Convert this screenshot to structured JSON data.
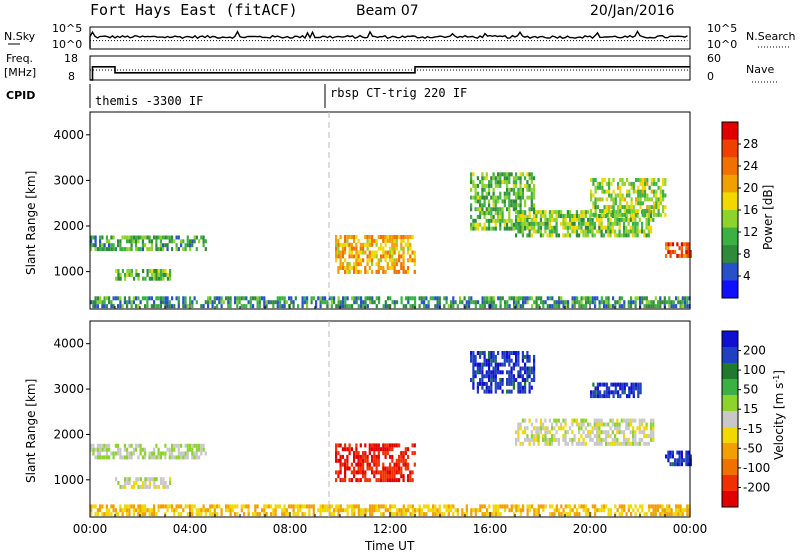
{
  "header": {
    "station": "Fort Hays East (fitACF)",
    "beam": "Beam 07",
    "date": "20/Jan/2016"
  },
  "noise_panel": {
    "left_label": "N.Sky",
    "right_label": "N.Search",
    "left_ticks": [
      "10^5",
      "10^0"
    ],
    "right_ticks": [
      "10^5",
      "10^0"
    ]
  },
  "freq_panel": {
    "left_label_1": "Freq.",
    "left_label_2": "[MHz]",
    "right_label": "Nave",
    "left_ticks": [
      "18",
      "8"
    ],
    "right_ticks": [
      "60",
      "0"
    ]
  },
  "cpid": {
    "label": "CPID",
    "segments": [
      "themis -3300 IF",
      "rbsp CT-trig 220 IF"
    ]
  },
  "axes": {
    "ylabel": "Slant Range [km]",
    "xlabel": "Time UT",
    "x_ticks": [
      "00:00",
      "04:00",
      "08:00",
      "12:00",
      "16:00",
      "20:00",
      "00:00"
    ],
    "y_ticks": [
      "1000",
      "2000",
      "3000",
      "4000"
    ]
  },
  "colors": {
    "power": [
      "#1010ff",
      "#2850c8",
      "#2f8a3a",
      "#3cb043",
      "#8ed22c",
      "#f0d800",
      "#f0a000",
      "#f07000",
      "#f04000",
      "#e00000"
    ],
    "velocity": [
      "#1010d0",
      "#2040c0",
      "#1f7a30",
      "#3cb043",
      "#8ed22c",
      "#c8c8c8",
      "#f0d800",
      "#f0a000",
      "#f07000",
      "#f03000",
      "#e00000"
    ]
  },
  "chart_data": [
    {
      "type": "line",
      "title": "N.Sky / N.Search",
      "x_range_hours": [
        0,
        24
      ],
      "series": [
        {
          "name": "N.Sky",
          "style": "solid"
        },
        {
          "name": "N.Search",
          "style": "dotted"
        }
      ]
    },
    {
      "type": "line",
      "title": "Freq. / Nave",
      "x_range_hours": [
        0,
        24
      ],
      "series": [
        {
          "name": "Freq. [MHz]",
          "style": "solid",
          "x": [
            0,
            0.1,
            0.1,
            1.0,
            1.0,
            13.0,
            13.0,
            24
          ],
          "y": [
            8,
            8,
            13.5,
            13.5,
            11,
            11,
            13.5,
            13.5
          ]
        },
        {
          "name": "Nave",
          "style": "dotted",
          "x": [
            0,
            1.0,
            1.0,
            24
          ],
          "y": [
            18,
            18,
            16,
            16
          ]
        }
      ]
    },
    {
      "type": "heatmap",
      "quantity": "Power [dB]",
      "x_range_hours": [
        0,
        24
      ],
      "ylim": [
        180,
        4500
      ],
      "colorbar": {
        "label": "Power [dB]",
        "ticks": [
          "28",
          "24",
          "20",
          "16",
          "12",
          "8",
          "4"
        ],
        "range": [
          0,
          32
        ]
      },
      "regions": [
        {
          "t0": 0.0,
          "t1": 4.6,
          "r0": 1450,
          "r1": 1750,
          "level": 0.3
        },
        {
          "t0": 1.0,
          "t1": 3.2,
          "r0": 800,
          "r1": 1000,
          "level": 0.35
        },
        {
          "t0": 9.8,
          "t1": 13.0,
          "r0": 950,
          "r1": 1800,
          "level": 0.65
        },
        {
          "t0": 15.2,
          "t1": 17.8,
          "r0": 1900,
          "r1": 3100,
          "level": 0.35
        },
        {
          "t0": 17.0,
          "t1": 22.5,
          "r0": 1750,
          "r1": 2300,
          "level": 0.4
        },
        {
          "t0": 20.0,
          "t1": 23.0,
          "r0": 2200,
          "r1": 3000,
          "level": 0.45
        },
        {
          "t0": 23.0,
          "t1": 24.0,
          "r0": 1300,
          "r1": 1600,
          "level": 0.85
        },
        {
          "t0": 0.0,
          "t1": 24.0,
          "r0": 200,
          "r1": 450,
          "level": 0.25
        }
      ]
    },
    {
      "type": "heatmap",
      "quantity": "Velocity [m s^-1]",
      "x_range_hours": [
        0,
        24
      ],
      "ylim": [
        180,
        4500
      ],
      "colorbar": {
        "label": "Velocity [m s^-1]",
        "ticks": [
          "200",
          "100",
          "50",
          "15",
          "-15",
          "-50",
          "-100",
          "-200"
        ],
        "range": [
          -250,
          250
        ]
      },
      "regions": [
        {
          "t0": 0.0,
          "t1": 4.6,
          "r0": 1450,
          "r1": 1750,
          "level": 0.1
        },
        {
          "t0": 1.0,
          "t1": 3.2,
          "r0": 800,
          "r1": 1000,
          "level": 0.0
        },
        {
          "t0": 9.8,
          "t1": 13.0,
          "r0": 950,
          "r1": 1800,
          "level": -0.9
        },
        {
          "t0": 15.2,
          "t1": 17.8,
          "r0": 2900,
          "r1": 3800,
          "level": 0.85
        },
        {
          "t0": 17.0,
          "t1": 22.5,
          "r0": 1750,
          "r1": 2300,
          "level": 0.0
        },
        {
          "t0": 20.0,
          "t1": 22.0,
          "r0": 2800,
          "r1": 3100,
          "level": 0.85
        },
        {
          "t0": 23.0,
          "t1": 24.0,
          "r0": 1300,
          "r1": 1600,
          "level": 0.85
        },
        {
          "t0": 0.0,
          "t1": 24.0,
          "r0": 200,
          "r1": 450,
          "level": -0.3
        }
      ]
    }
  ]
}
